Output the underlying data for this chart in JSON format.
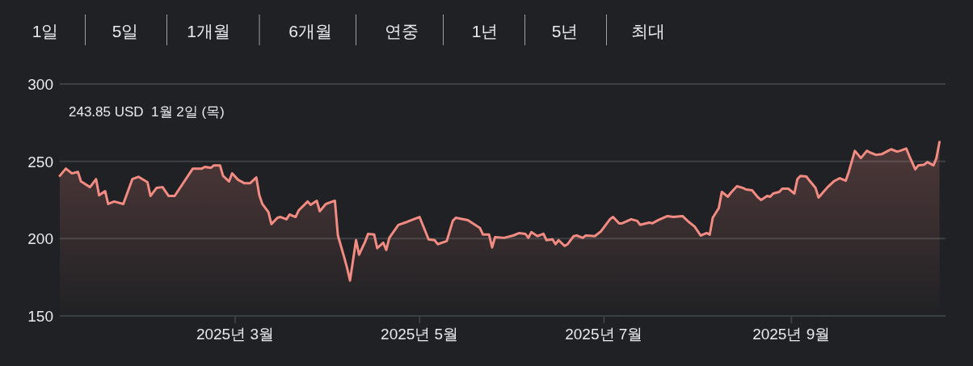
{
  "chart_data": {
    "type": "area",
    "color": "#f28b82",
    "grid": "y",
    "ylim": [
      150,
      300
    ],
    "yticks": [
      150,
      200,
      250,
      300
    ],
    "xlim": [
      "2025-01-02",
      "2025-10-22"
    ],
    "xticks": [
      {
        "value": "2025-03-01",
        "label": "2025년 3월"
      },
      {
        "value": "2025-05-01",
        "label": "2025년 5월"
      },
      {
        "value": "2025-07-01",
        "label": "2025년 7월"
      },
      {
        "value": "2025-09-01",
        "label": "2025년 9월"
      }
    ],
    "annotations": [
      "1일",
      "5일",
      "1개월",
      "6개월",
      "연중",
      "1년",
      "5년",
      "최대",
      "243.85 USD  1월 2일 (목)"
    ],
    "x": [
      "2025-01-02",
      "2025-01-04",
      "2025-01-06",
      "2025-01-08",
      "2025-01-09",
      "2025-01-12",
      "2025-01-14",
      "2025-01-15",
      "2025-01-17",
      "2025-01-18",
      "2025-01-20",
      "2025-01-23",
      "2025-01-26",
      "2025-01-28",
      "2025-01-31",
      "2025-02-01",
      "2025-02-03",
      "2025-02-05",
      "2025-02-07",
      "2025-02-09",
      "2025-02-15",
      "2025-02-18",
      "2025-02-19",
      "2025-02-21",
      "2025-02-22",
      "2025-02-24",
      "2025-02-25",
      "2025-02-27",
      "2025-02-28",
      "2025-03-02",
      "2025-03-04",
      "2025-03-06",
      "2025-03-08",
      "2025-03-09",
      "2025-03-10",
      "2025-03-12",
      "2025-03-13",
      "2025-03-15",
      "2025-03-16",
      "2025-03-18",
      "2025-03-19",
      "2025-03-21",
      "2025-03-22",
      "2025-03-25",
      "2025-03-26",
      "2025-03-28",
      "2025-03-29",
      "2025-03-31",
      "2025-04-03",
      "2025-04-04",
      "2025-04-06",
      "2025-04-07",
      "2025-04-08",
      "2025-04-10",
      "2025-04-11",
      "2025-04-13",
      "2025-04-14",
      "2025-04-16",
      "2025-04-17",
      "2025-04-19",
      "2025-04-20",
      "2025-04-21",
      "2025-04-24",
      "2025-04-27",
      "2025-05-01",
      "2025-05-04",
      "2025-05-06",
      "2025-05-07",
      "2025-05-10",
      "2025-05-12",
      "2025-05-13",
      "2025-05-17",
      "2025-05-21",
      "2025-05-22",
      "2025-05-24",
      "2025-05-25",
      "2025-05-26",
      "2025-05-29",
      "2025-06-01",
      "2025-06-03",
      "2025-06-05",
      "2025-06-06",
      "2025-06-07",
      "2025-06-09",
      "2025-06-11",
      "2025-06-12",
      "2025-06-14",
      "2025-06-15",
      "2025-06-16",
      "2025-06-18",
      "2025-06-19",
      "2025-06-21",
      "2025-06-22",
      "2025-06-24",
      "2025-06-25",
      "2025-06-28",
      "2025-06-30",
      "2025-07-01",
      "2025-07-03",
      "2025-07-04",
      "2025-07-06",
      "2025-07-07",
      "2025-07-10",
      "2025-07-12",
      "2025-07-13",
      "2025-07-16",
      "2025-07-17",
      "2025-07-19",
      "2025-07-22",
      "2025-07-24",
      "2025-07-27",
      "2025-07-29",
      "2025-07-31",
      "2025-08-02",
      "2025-08-04",
      "2025-08-05",
      "2025-08-06",
      "2025-08-08",
      "2025-08-09",
      "2025-08-11",
      "2025-08-12",
      "2025-08-14",
      "2025-08-16",
      "2025-08-17",
      "2025-08-19",
      "2025-08-21",
      "2025-08-22",
      "2025-08-24",
      "2025-08-25",
      "2025-08-26",
      "2025-08-28",
      "2025-08-29",
      "2025-08-31",
      "2025-09-02",
      "2025-09-03",
      "2025-09-04",
      "2025-09-06",
      "2025-09-07",
      "2025-09-09",
      "2025-09-10",
      "2025-09-13",
      "2025-09-15",
      "2025-09-17",
      "2025-09-19",
      "2025-09-20",
      "2025-09-22",
      "2025-09-24",
      "2025-09-26",
      "2025-09-27",
      "2025-09-29",
      "2025-10-01",
      "2025-10-03",
      "2025-10-04",
      "2025-10-06",
      "2025-10-07",
      "2025-10-09",
      "2025-10-10",
      "2025-10-12",
      "2025-10-13",
      "2025-10-15",
      "2025-10-16",
      "2025-10-18",
      "2025-10-19",
      "2025-10-20"
    ],
    "values": [
      240.6,
      245.3,
      242.2,
      243.2,
      237,
      233.3,
      238.5,
      228,
      230.7,
      222.4,
      224,
      222.4,
      238.5,
      240,
      236.5,
      227.6,
      232.8,
      233.3,
      227.6,
      227.6,
      245.3,
      245.3,
      246.4,
      245.8,
      247.4,
      247.4,
      240.6,
      237,
      242.2,
      238,
      235.9,
      235.9,
      239.6,
      228.1,
      222.4,
      217.2,
      209.4,
      213.5,
      214,
      212.5,
      215.6,
      214,
      218.2,
      224,
      221.9,
      224.5,
      217.7,
      222.4,
      224.5,
      202,
      188.5,
      181.3,
      172.9,
      199,
      189.6,
      198,
      203.1,
      202.6,
      193.8,
      197.4,
      192.7,
      200.5,
      208.9,
      210.9,
      214,
      199.5,
      199,
      196.4,
      198.4,
      211.5,
      213.5,
      211.9,
      206.8,
      202.6,
      202.6,
      194.3,
      201,
      200.5,
      202,
      203.6,
      203.1,
      200.5,
      204.2,
      201.6,
      203.1,
      199,
      199.5,
      196.4,
      199,
      195.3,
      196.4,
      201.6,
      202,
      200.5,
      202,
      201.6,
      204.7,
      207.3,
      212.5,
      214,
      209.9,
      209.9,
      212.5,
      211.5,
      208.9,
      210.4,
      209.9,
      212,
      214.6,
      214,
      214.6,
      210.9,
      207.8,
      202,
      203.6,
      202.6,
      213.5,
      219.8,
      230.2,
      227.1,
      229.7,
      233.9,
      232.8,
      231.8,
      231.3,
      226.6,
      225,
      227.6,
      227.1,
      229.2,
      230.2,
      232.3,
      232.3,
      229.2,
      238.5,
      240.6,
      240.1,
      237.5,
      232.8,
      226.6,
      233.3,
      237,
      239.1,
      237.5,
      243.2,
      256.8,
      252.1,
      256.8,
      255.7,
      254.2,
      254.7,
      256.8,
      257.8,
      256.3,
      256.8,
      258.3,
      253.6,
      244.8,
      247.4,
      247.9,
      249.5,
      247.4,
      252.1,
      262.5
    ]
  }
}
